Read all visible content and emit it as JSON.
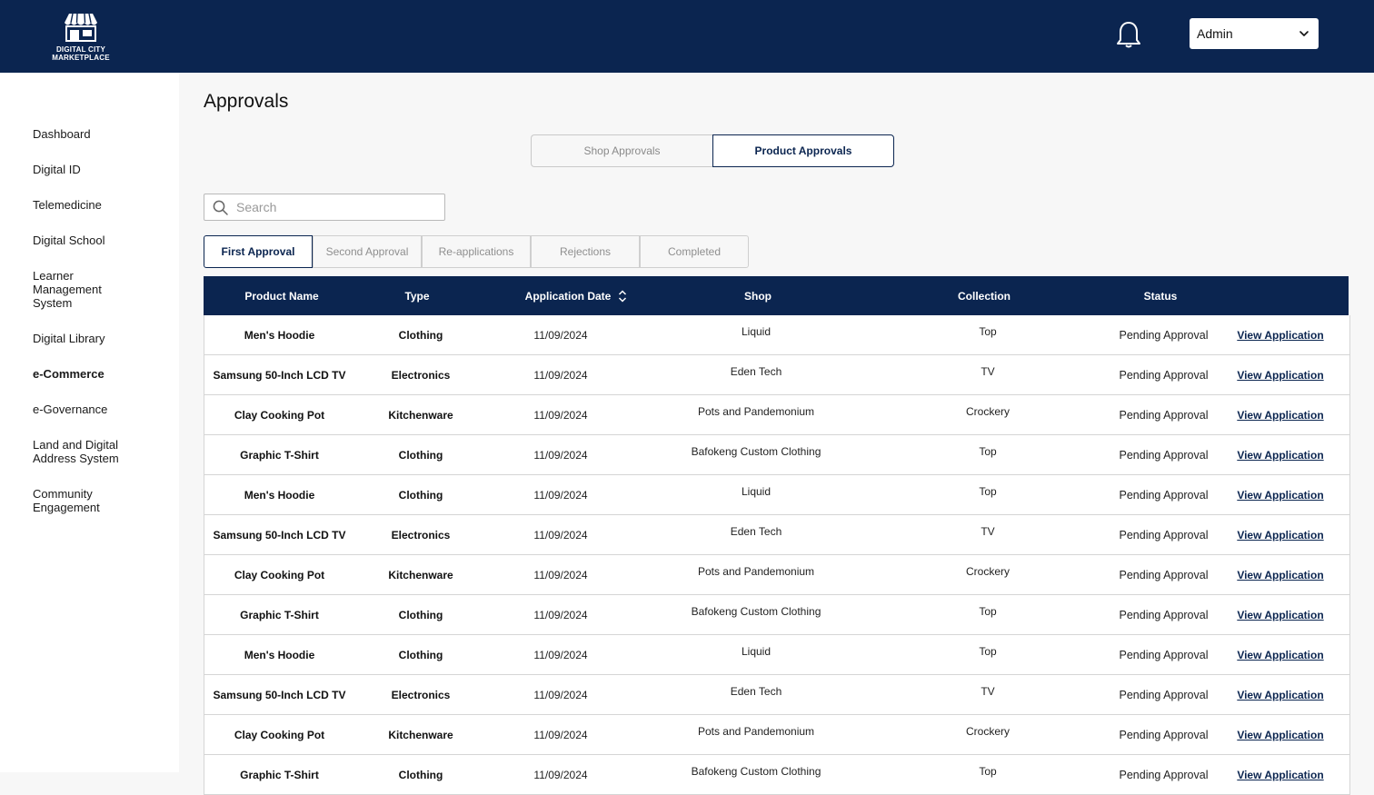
{
  "brand": {
    "line1": "DIGITAL CITY",
    "line2": "MARKETPLACE"
  },
  "header": {
    "user_select": "Admin"
  },
  "sidebar": {
    "items": [
      {
        "label": "Dashboard"
      },
      {
        "label": "Digital ID"
      },
      {
        "label": "Telemedicine"
      },
      {
        "label": "Digital School"
      },
      {
        "label": "Learner Management System"
      },
      {
        "label": "Digital Library"
      },
      {
        "label": "e-Commerce"
      },
      {
        "label": "e-Governance"
      },
      {
        "label": "Land and Digital Address System"
      },
      {
        "label": "Community Engagement"
      }
    ]
  },
  "page": {
    "title": "Approvals"
  },
  "segments": {
    "shop": "Shop Approvals",
    "product": "Product Approvals"
  },
  "search": {
    "placeholder": "Search",
    "value": ""
  },
  "tabs": [
    {
      "label": "First Approval"
    },
    {
      "label": "Second Approval"
    },
    {
      "label": "Re-applications"
    },
    {
      "label": "Rejections"
    },
    {
      "label": "Completed"
    }
  ],
  "table": {
    "columns": {
      "name": "Product Name",
      "type": "Type",
      "date": "Application Date",
      "shop": "Shop",
      "collection": "Collection",
      "status": "Status"
    },
    "link_label": "View Application",
    "rows": [
      {
        "name": "Men's Hoodie",
        "type": "Clothing",
        "date": "11/09/2024",
        "shop": "Liquid",
        "collection": "Top",
        "status": "Pending Approval"
      },
      {
        "name": "Samsung 50-Inch LCD TV",
        "type": "Electronics",
        "date": "11/09/2024",
        "shop": "Eden Tech",
        "collection": "TV",
        "status": "Pending Approval"
      },
      {
        "name": "Clay Cooking Pot",
        "type": "Kitchenware",
        "date": "11/09/2024",
        "shop": "Pots and Pandemonium",
        "collection": "Crockery",
        "status": "Pending Approval"
      },
      {
        "name": "Graphic T-Shirt",
        "type": "Clothing",
        "date": "11/09/2024",
        "shop": "Bafokeng Custom Clothing",
        "collection": "Top",
        "status": "Pending Approval"
      },
      {
        "name": "Men's Hoodie",
        "type": "Clothing",
        "date": "11/09/2024",
        "shop": "Liquid",
        "collection": "Top",
        "status": "Pending Approval"
      },
      {
        "name": "Samsung 50-Inch LCD TV",
        "type": "Electronics",
        "date": "11/09/2024",
        "shop": "Eden Tech",
        "collection": "TV",
        "status": "Pending Approval"
      },
      {
        "name": "Clay Cooking Pot",
        "type": "Kitchenware",
        "date": "11/09/2024",
        "shop": "Pots and Pandemonium",
        "collection": "Crockery",
        "status": "Pending Approval"
      },
      {
        "name": "Graphic T-Shirt",
        "type": "Clothing",
        "date": "11/09/2024",
        "shop": "Bafokeng Custom Clothing",
        "collection": "Top",
        "status": "Pending Approval"
      },
      {
        "name": "Men's Hoodie",
        "type": "Clothing",
        "date": "11/09/2024",
        "shop": "Liquid",
        "collection": "Top",
        "status": "Pending Approval"
      },
      {
        "name": "Samsung 50-Inch LCD TV",
        "type": "Electronics",
        "date": "11/09/2024",
        "shop": "Eden Tech",
        "collection": "TV",
        "status": "Pending Approval"
      },
      {
        "name": "Clay Cooking Pot",
        "type": "Kitchenware",
        "date": "11/09/2024",
        "shop": "Pots and Pandemonium",
        "collection": "Crockery",
        "status": "Pending Approval"
      },
      {
        "name": "Graphic T-Shirt",
        "type": "Clothing",
        "date": "11/09/2024",
        "shop": "Bafokeng Custom Clothing",
        "collection": "Top",
        "status": "Pending Approval"
      }
    ]
  }
}
